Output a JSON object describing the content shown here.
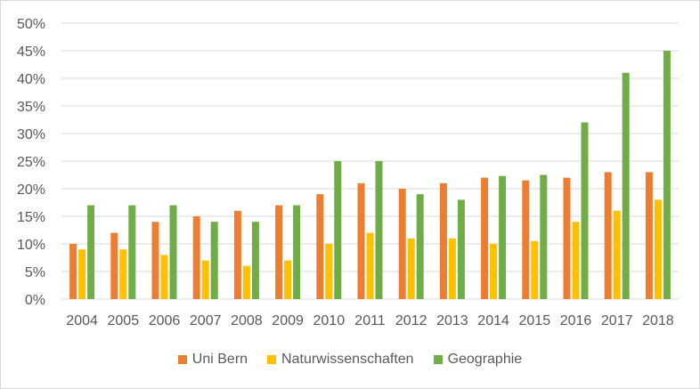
{
  "chart_data": {
    "type": "bar",
    "categories": [
      "2004",
      "2005",
      "2006",
      "2007",
      "2008",
      "2009",
      "2010",
      "2011",
      "2012",
      "2013",
      "2014",
      "2015",
      "2016",
      "2017",
      "2018"
    ],
    "series": [
      {
        "name": "Uni Bern",
        "color": "#ED7D31",
        "values": [
          10,
          12,
          14,
          15,
          16,
          17,
          19,
          21,
          20,
          21,
          22,
          21.5,
          22,
          23,
          23
        ]
      },
      {
        "name": "Naturwissenschaften",
        "color": "#FFC000",
        "values": [
          9,
          9,
          8,
          7,
          6,
          7,
          10,
          12,
          11,
          11,
          10,
          10.5,
          14,
          16,
          18
        ]
      },
      {
        "name": "Geographie",
        "color": "#70AD47",
        "values": [
          17,
          17,
          17,
          14,
          14,
          17,
          25,
          25,
          19,
          18,
          22.3,
          22.5,
          32,
          41,
          45
        ]
      }
    ],
    "ylim": [
      0,
      50
    ],
    "yticks": [
      "0%",
      "5%",
      "10%",
      "15%",
      "20%",
      "25%",
      "30%",
      "35%",
      "40%",
      "45%",
      "50%"
    ],
    "grid": true,
    "legend": "bottom"
  }
}
